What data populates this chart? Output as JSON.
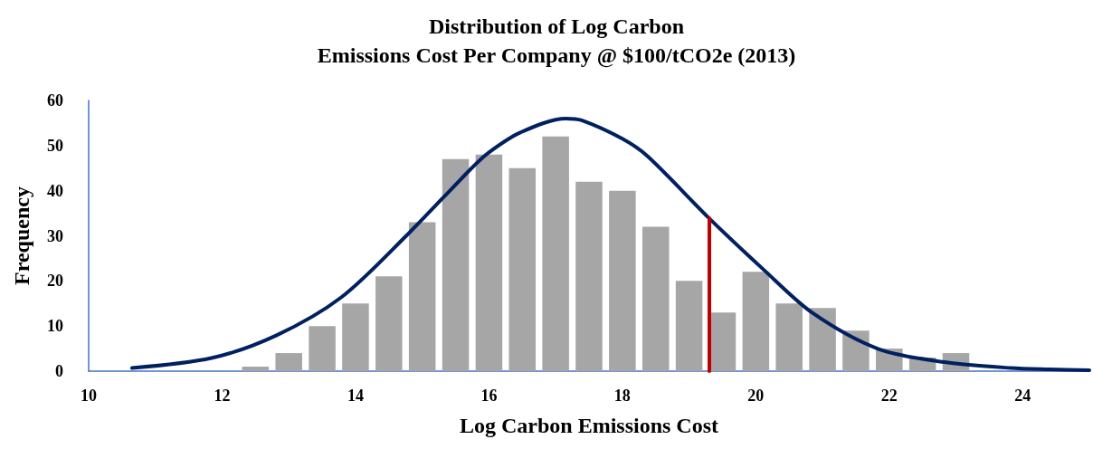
{
  "chart_data": {
    "type": "histogram",
    "title": "Distribution of Log Carbon\nEmissions Cost Per Company @ $100/tCO2e (2013)",
    "xlabel": "Log Carbon Emissions Cost",
    "ylabel": "Frequency",
    "series": [
      {
        "color": "#a6a6a6",
        "bins": [
          12.25,
          12.75,
          13.25,
          13.75,
          14.25,
          14.75,
          15.25,
          15.75,
          16.25,
          16.75,
          17.25,
          17.75,
          18.25,
          18.75,
          19.25,
          19.75,
          20.25,
          20.75,
          21.25,
          21.75,
          22.25,
          22.75,
          23.25
        ],
        "values": [
          1,
          4,
          10,
          15,
          21,
          33,
          47,
          48,
          45,
          52,
          42,
          40,
          32,
          20,
          13,
          22,
          15,
          14,
          9,
          5,
          3,
          4
        ]
      },
      {
        "type": "line",
        "color": "#002060",
        "x": [
          10.65,
          11.84,
          12.81,
          13.79,
          14.76,
          15.74,
          16.0,
          16.47,
          17.15,
          17.39,
          18.0,
          18.38,
          19.3,
          20.11,
          20.85,
          21.84,
          22.83,
          23.82,
          24.4,
          25
        ],
        "values": [
          0.7,
          2.9,
          7.9,
          16.4,
          30,
          45,
          48.5,
          52.9,
          56,
          55.6,
          51.5,
          47.6,
          33.9,
          22.6,
          12.9,
          4.9,
          2,
          0.7,
          0.4,
          0.2
        ]
      }
    ],
    "ref_lines": [
      {
        "axis": "x",
        "value": 19.3,
        "color": "#c00000"
      }
    ],
    "xlim": [
      10,
      25
    ],
    "xticks": [
      10,
      12,
      14,
      16,
      18,
      20,
      22,
      24
    ],
    "ylim": [
      0,
      60
    ],
    "yticks": [
      0,
      10,
      20,
      30,
      40,
      50,
      60
    ],
    "grid": false
  }
}
